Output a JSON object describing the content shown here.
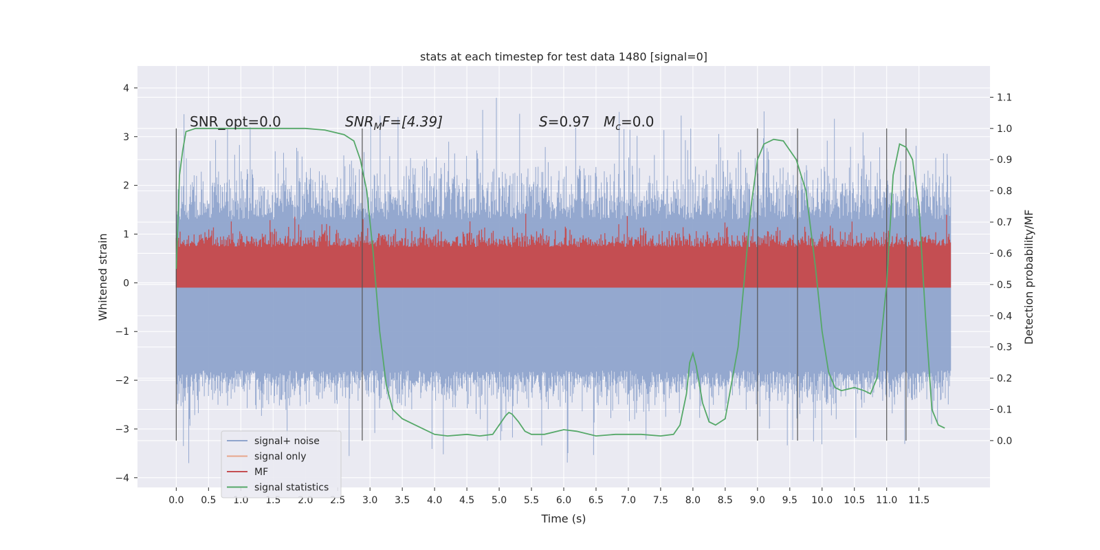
{
  "chart_data": {
    "type": "line",
    "title": "stats at each timestep for test data 1480 [signal=0]",
    "xlabel": "Time (s)",
    "ylabel": "Whitened strain",
    "y2label": "Detection probability/MF",
    "xlim": [
      -0.6,
      12.6
    ],
    "ylim": [
      -4.2,
      4.45
    ],
    "y2lim": [
      -0.15,
      1.2
    ],
    "grid": true,
    "legend_position": "lower-left",
    "x_ticks": [
      "0.0",
      "0.5",
      "1.0",
      "1.5",
      "2.0",
      "2.5",
      "3.0",
      "3.5",
      "4.0",
      "4.5",
      "5.0",
      "5.5",
      "6.0",
      "6.5",
      "7.0",
      "7.5",
      "8.0",
      "8.5",
      "9.0",
      "9.5",
      "10.0",
      "10.5",
      "11.0",
      "11.5"
    ],
    "y_ticks": [
      "4",
      "3",
      "2",
      "1",
      "0",
      "−1",
      "−2",
      "−3",
      "−4"
    ],
    "y2_ticks": [
      "1.1",
      "1.0",
      "0.9",
      "0.8",
      "0.7",
      "0.6",
      "0.5",
      "0.4",
      "0.3",
      "0.2",
      "0.1",
      "0.0"
    ],
    "annotations": {
      "snr_opt": "SNR_opt=0.0",
      "snr_mf_base": "SNR",
      "snr_mf_sub": "M",
      "snr_mf_rest": "F=[4.39]",
      "s_sym": "S",
      "s_val": "=0.97",
      "mc_sym": "M",
      "mc_sub": "c",
      "mc_val": "=0.0"
    },
    "series": [
      {
        "name": "signal+ noise",
        "color": "#8fa4cc",
        "axis": "left",
        "style": "noise-band",
        "center": 0.0,
        "typical_amplitude": 2.0,
        "peak_max": 4.1,
        "peak_min": -3.7
      },
      {
        "name": "signal only",
        "color": "#e8a58a",
        "axis": "left",
        "values": []
      },
      {
        "name": "MF",
        "color": "#c44e52",
        "axis": "right",
        "style": "noise-band",
        "center": 0.545,
        "typical_low": 0.49,
        "typical_high": 0.62
      },
      {
        "name": "signal statistics",
        "color": "#55a868",
        "axis": "right",
        "x": [
          0.0,
          0.05,
          0.1,
          0.15,
          0.3,
          0.5,
          1.0,
          1.5,
          2.0,
          2.3,
          2.6,
          2.75,
          2.85,
          2.95,
          3.05,
          3.15,
          3.25,
          3.35,
          3.5,
          3.7,
          4.0,
          4.2,
          4.5,
          4.7,
          4.9,
          5.1,
          5.15,
          5.2,
          5.3,
          5.4,
          5.5,
          5.7,
          6.0,
          6.2,
          6.5,
          6.8,
          7.0,
          7.2,
          7.5,
          7.7,
          7.8,
          7.9,
          7.95,
          8.0,
          8.05,
          8.1,
          8.15,
          8.25,
          8.35,
          8.5,
          8.7,
          8.9,
          9.0,
          9.1,
          9.25,
          9.4,
          9.6,
          9.75,
          9.9,
          10.0,
          10.1,
          10.2,
          10.3,
          10.5,
          10.65,
          10.75,
          10.85,
          11.0,
          11.1,
          11.2,
          11.3,
          11.4,
          11.5,
          11.6,
          11.7,
          11.8,
          11.9
        ],
        "y": [
          0.55,
          0.85,
          0.93,
          0.99,
          1.0,
          1.0,
          1.0,
          1.0,
          1.0,
          0.995,
          0.98,
          0.96,
          0.9,
          0.8,
          0.6,
          0.35,
          0.18,
          0.1,
          0.07,
          0.05,
          0.02,
          0.015,
          0.02,
          0.015,
          0.02,
          0.08,
          0.09,
          0.085,
          0.06,
          0.03,
          0.02,
          0.02,
          0.035,
          0.03,
          0.015,
          0.02,
          0.02,
          0.02,
          0.015,
          0.02,
          0.05,
          0.15,
          0.25,
          0.28,
          0.24,
          0.18,
          0.12,
          0.06,
          0.05,
          0.07,
          0.3,
          0.75,
          0.9,
          0.95,
          0.965,
          0.96,
          0.9,
          0.8,
          0.55,
          0.35,
          0.22,
          0.17,
          0.16,
          0.17,
          0.16,
          0.15,
          0.2,
          0.5,
          0.85,
          0.95,
          0.94,
          0.9,
          0.75,
          0.4,
          0.1,
          0.05,
          0.04
        ]
      }
    ],
    "vertical_lines_x": [
      0.0,
      2.88,
      9.0,
      9.62,
      11.0,
      11.3
    ]
  }
}
